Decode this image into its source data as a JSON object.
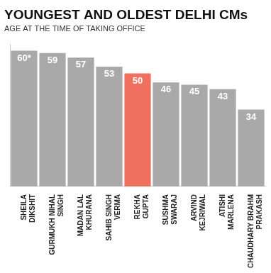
{
  "chart_data": {
    "type": "bar",
    "title": "YOUNGEST AND OLDEST DELHI CMs",
    "subtitle": "AGE AT THE TIME OF TAKING OFFICE",
    "categories": [
      "SHEILA DIKSHIT",
      "GURMUKH NIHAL SINGH",
      "MADAN LAL KHURANA",
      "SAHIB SINGH VERMA",
      "REKHA GUPTA",
      "SUSHMA SWARAJ",
      "ARVIND KEJRIWAL",
      "ATISHI MARLENA",
      "CHAUDHARY BRAHM PRAKASH"
    ],
    "values": [
      60,
      59,
      57,
      53,
      50,
      46,
      45,
      43,
      34
    ],
    "value_labels": [
      "60*",
      "59",
      "57",
      "53",
      "50",
      "46",
      "45",
      "43",
      "34"
    ],
    "colors": [
      "#a9a9a9",
      "#a9a9a9",
      "#a9a9a9",
      "#a9a9a9",
      "#f0705f",
      "#a9a9a9",
      "#a9a9a9",
      "#a9a9a9",
      "#a9a9a9"
    ],
    "ylim": [
      0,
      63
    ],
    "grid": false,
    "data_labels": true,
    "tick_labels": "x"
  }
}
